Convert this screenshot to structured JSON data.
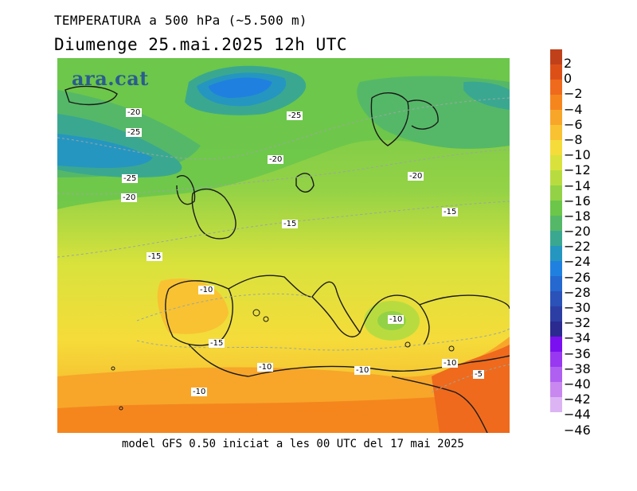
{
  "header": {
    "title": "TEMPERATURA a 500 hPa (~5.500 m)",
    "subtitle": "Diumenge  25.mai.2025  12h  UTC"
  },
  "logo": {
    "text": "ara.cat"
  },
  "footer": {
    "text": "model GFS 0.50 iniciat a les 00 UTC del 17 mai 2025"
  },
  "colorbar": {
    "colors": [
      "#c0401a",
      "#dc5018",
      "#ef6a1c",
      "#f5861e",
      "#f7a62a",
      "#f8c232",
      "#f5dc3a",
      "#d9e23c",
      "#b8dc40",
      "#93d246",
      "#6cc64a",
      "#55b868",
      "#3aa890",
      "#2596c0",
      "#2080e0",
      "#2468d0",
      "#2a52b8",
      "#2c3ea4",
      "#2a2a90",
      "#7a10f0",
      "#9838f0",
      "#b060f0",
      "#c888f0",
      "#dcb4f4"
    ],
    "labels": [
      "2",
      "0",
      "−2",
      "−4",
      "−6",
      "−8",
      "−10",
      "−12",
      "−14",
      "−16",
      "−18",
      "−20",
      "−22",
      "−24",
      "−26",
      "−28",
      "−30",
      "−32",
      "−34",
      "−36",
      "−38",
      "−40",
      "−42",
      "−44",
      "−46"
    ]
  },
  "contour_labels": [
    "-20",
    "-25",
    "-25",
    "-20",
    "-25",
    "-20",
    "-20",
    "-15",
    "-15",
    "-15",
    "-10",
    "-10",
    "-15",
    "-10",
    "-10",
    "-10",
    "-5",
    "-10"
  ]
}
